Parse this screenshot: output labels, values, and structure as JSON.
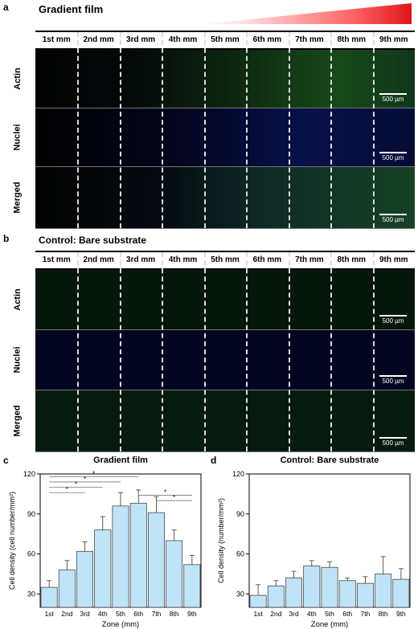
{
  "panel_a": {
    "label": "a",
    "title": "Gradient film",
    "zones": [
      "1st mm",
      "2nd mm",
      "3rd mm",
      "4th mm",
      "5th mm",
      "6th mm",
      "7th mm",
      "8th mm",
      "9th mm"
    ],
    "rows": [
      "Actin",
      "Nuclei",
      "Merged"
    ],
    "scale": "500 µm"
  },
  "panel_b": {
    "label": "b",
    "title": "Control: Bare substrate",
    "zones": [
      "1st mm",
      "2nd mm",
      "3rd mm",
      "4th mm",
      "5th mm",
      "6th mm",
      "7th mm",
      "8th mm",
      "9th mm"
    ],
    "rows": [
      "Actin",
      "Nuclei",
      "Merged"
    ],
    "scale": "500 µm"
  },
  "panel_c": {
    "label": "c"
  },
  "panel_d": {
    "label": "d"
  },
  "chart_data": [
    {
      "type": "bar",
      "title": "Gradient film",
      "xlabel": "Zone (mm)",
      "ylabel": "Cell density (cell number/mm²)",
      "categories": [
        "1st",
        "2nd",
        "3rd",
        "4th",
        "5th",
        "6th",
        "7th",
        "8th",
        "9th"
      ],
      "values": [
        35,
        48,
        62,
        78,
        96,
        98,
        91,
        70,
        52
      ],
      "errors": [
        5,
        7,
        7,
        10,
        10,
        10,
        12,
        8,
        7
      ],
      "ylim": [
        20,
        120
      ],
      "yticks": [
        30,
        60,
        90,
        120
      ],
      "significance": "*",
      "bar_color": "#bfe3f7"
    },
    {
      "type": "bar",
      "title": "Control: Bare substrate",
      "xlabel": "Zone (mm)",
      "ylabel": "Cell density (number/mm²)",
      "categories": [
        "1st",
        "2nd",
        "3rd",
        "4th",
        "5th",
        "6th",
        "7th",
        "8th",
        "9th"
      ],
      "values": [
        29,
        36,
        42,
        51,
        50,
        40,
        38,
        45,
        41
      ],
      "errors": [
        8,
        4,
        5,
        4,
        4,
        2,
        5,
        13,
        8
      ],
      "ylim": [
        20,
        120
      ],
      "yticks": [
        30,
        60,
        90,
        120
      ],
      "bar_color": "#bfe3f7"
    }
  ]
}
